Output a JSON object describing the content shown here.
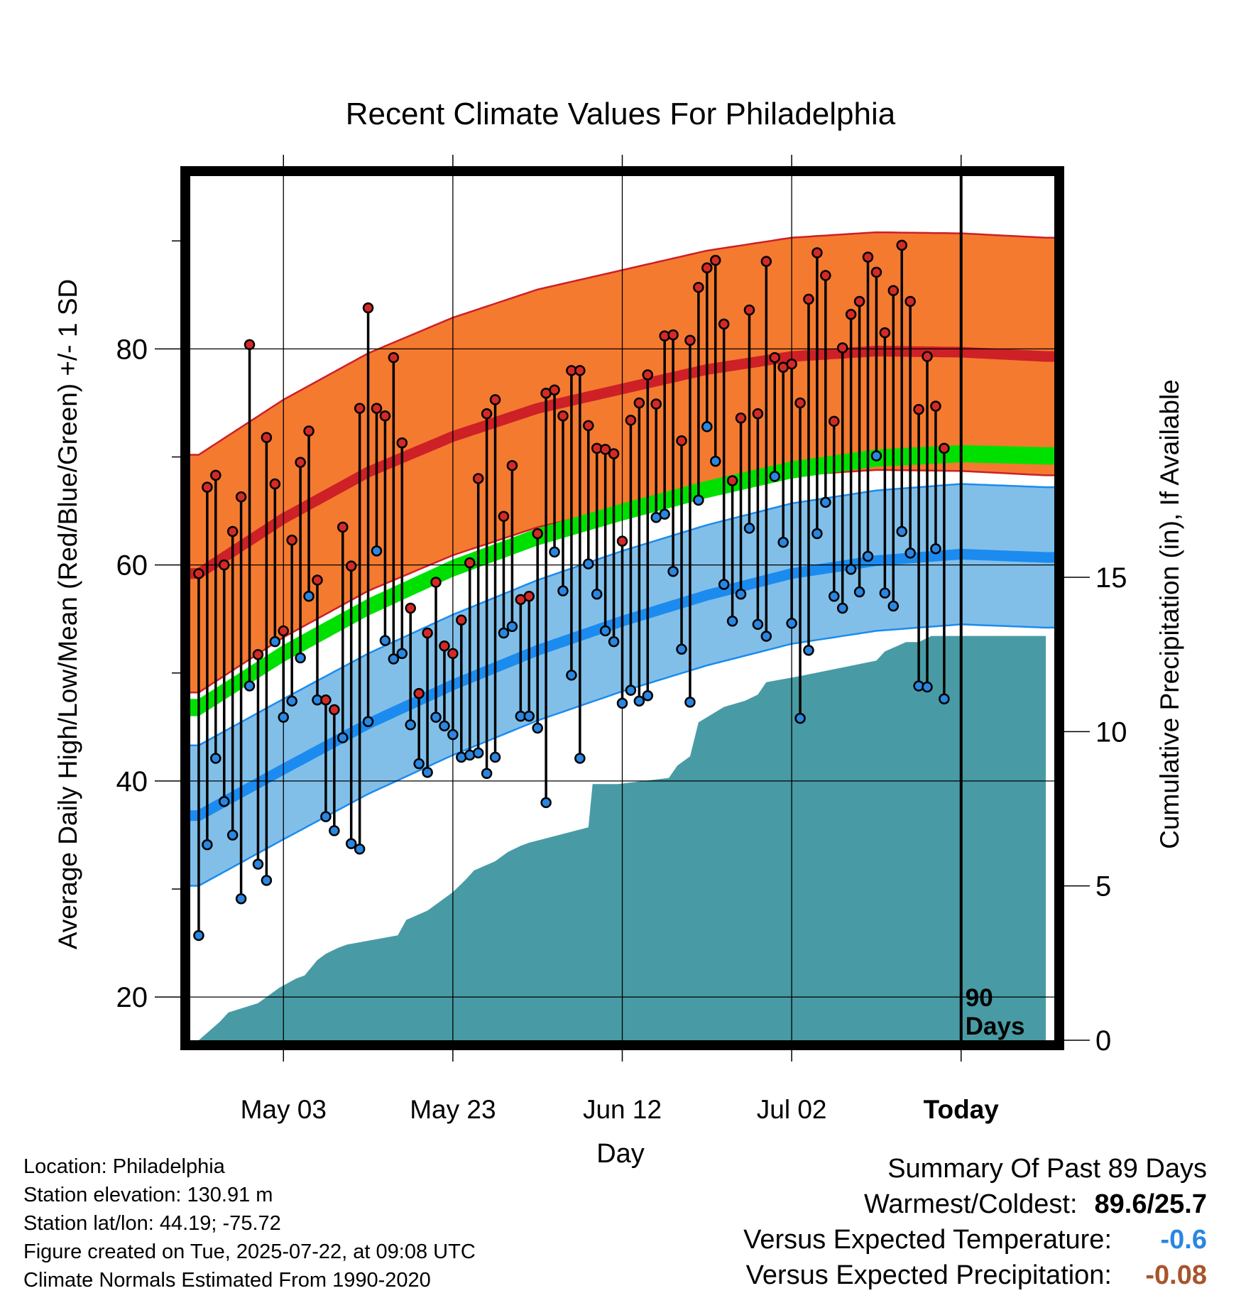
{
  "chart_data": {
    "type": "line",
    "title": "Recent Climate Values For Philadelphia",
    "xlabel": "Day",
    "ylabel": "Average Daily High/Low/Mean (Red/Blue/Green) +/- 1 SD",
    "y2label": "Cumulative Precipitation (in), If Available",
    "ylim": [
      16,
      96
    ],
    "y2lim": [
      0,
      28
    ],
    "yticks": [
      "20",
      "40",
      "60",
      "80"
    ],
    "y2ticks": [
      "0",
      "5",
      "10",
      "15"
    ],
    "xticks": [
      {
        "day": 10,
        "label": "May 03"
      },
      {
        "day": 30,
        "label": "May 23"
      },
      {
        "day": 50,
        "label": "Jun 12"
      },
      {
        "day": 70,
        "label": "Jul 02"
      },
      {
        "day": 90,
        "label": "Today"
      }
    ],
    "today_marker": {
      "day": 90,
      "label_line1": "90",
      "label_line2": "Days"
    },
    "grid": true,
    "colors": {
      "high_band": "#f47a30",
      "high_mean": "#cd2027",
      "low_band": "#82bfe8",
      "low_mean": "#1b8bef",
      "mean_line": "#00e000",
      "precip": "#489ba4",
      "high_dot": "#d42a26",
      "low_dot": "#2a86e0"
    },
    "normals": {
      "x": [
        0,
        10,
        20,
        30,
        40,
        50,
        60,
        70,
        80,
        90,
        100
      ],
      "high_mean": [
        59.2,
        64.3,
        68.6,
        71.9,
        74.5,
        76.3,
        78.1,
        79.3,
        79.8,
        79.7,
        79.3
      ],
      "high_sd": 11.0,
      "mean": [
        46.8,
        51.8,
        56.1,
        59.7,
        62.6,
        64.9,
        67.0,
        68.8,
        69.9,
        70.3,
        70.1
      ],
      "mean_halfwidth": 0.8,
      "low_mean": [
        36.8,
        41.1,
        45.3,
        48.9,
        52.1,
        54.8,
        57.2,
        59.2,
        60.4,
        61.0,
        60.7
      ],
      "low_sd": 6.5
    },
    "series": [
      {
        "name": "high",
        "values": [
          59.2,
          67.2,
          68.3,
          60.0,
          63.1,
          66.3,
          80.4,
          51.7,
          71.8,
          67.5,
          53.9,
          62.3,
          69.5,
          72.4,
          58.6,
          47.5,
          46.6,
          63.5,
          59.9,
          74.5,
          83.8,
          74.5,
          73.8,
          79.2,
          71.3,
          56.0,
          48.1,
          53.7,
          58.4,
          52.5,
          51.8,
          54.9,
          60.2,
          68.0,
          74.0,
          75.3,
          64.5,
          69.2,
          56.8,
          57.1,
          62.9,
          75.9,
          76.2,
          73.8,
          78.0,
          78.0,
          72.9,
          70.8,
          70.7,
          70.3,
          62.2,
          73.4,
          75.0,
          77.6,
          74.9,
          81.2,
          81.3,
          71.5,
          80.8,
          85.7,
          87.5,
          88.2,
          82.3,
          67.8,
          73.6,
          83.6,
          74.0,
          88.1,
          79.2,
          78.3,
          78.6,
          75.0,
          84.6,
          88.9,
          86.8,
          73.3,
          80.1,
          83.2,
          84.4,
          88.5,
          87.1,
          81.5,
          85.4,
          89.6,
          84.4,
          74.4,
          79.3,
          74.7,
          70.8
        ]
      },
      {
        "name": "low",
        "values": [
          25.7,
          34.1,
          42.1,
          38.1,
          35.0,
          29.1,
          48.8,
          32.3,
          30.8,
          52.9,
          45.9,
          47.4,
          51.4,
          57.1,
          47.5,
          36.7,
          35.4,
          44.0,
          34.2,
          33.7,
          45.5,
          61.3,
          53.0,
          51.3,
          51.8,
          45.2,
          41.6,
          40.8,
          45.9,
          45.1,
          44.3,
          42.2,
          42.4,
          42.6,
          40.7,
          42.2,
          53.7,
          54.3,
          46.0,
          46.0,
          44.9,
          38.0,
          61.2,
          57.6,
          49.8,
          42.1,
          60.1,
          57.3,
          53.9,
          52.9,
          47.2,
          48.4,
          47.4,
          47.9,
          64.4,
          64.7,
          59.4,
          52.2,
          47.3,
          66.0,
          72.8,
          69.6,
          58.2,
          54.8,
          57.3,
          63.4,
          54.5,
          53.4,
          68.2,
          62.1,
          54.6,
          45.8,
          52.1,
          62.9,
          65.8,
          57.1,
          56.0,
          59.6,
          57.5,
          60.8,
          70.1,
          57.4,
          56.2,
          63.1,
          61.1,
          48.8,
          48.7,
          61.5,
          47.6
        ]
      },
      {
        "name": "precip",
        "x": [
          0,
          2.5,
          3.5,
          7.0,
          8.0,
          9.5,
          11.5,
          12.5,
          14.0,
          15.0,
          16.5,
          17.5,
          23.5,
          24.5,
          27.0,
          30.0,
          31.5,
          32.5,
          35.0,
          36.5,
          38.0,
          39.0,
          46.0,
          46.5,
          49.5,
          55.5,
          56.5,
          58.0,
          59.0,
          62.0,
          64.5,
          66.0,
          67.0,
          71.0,
          80.0,
          81.0,
          83.5,
          85.0,
          86.5,
          100.0
        ],
        "values": [
          0.0,
          0.6,
          0.9,
          1.2,
          1.4,
          1.7,
          2.0,
          2.1,
          2.6,
          2.8,
          3.0,
          3.1,
          3.4,
          3.9,
          4.2,
          4.8,
          5.2,
          5.5,
          5.8,
          6.1,
          6.3,
          6.4,
          6.9,
          8.3,
          8.3,
          8.5,
          8.9,
          9.2,
          10.3,
          10.8,
          11.0,
          11.2,
          11.6,
          11.8,
          12.3,
          12.6,
          12.9,
          12.9,
          13.1,
          13.1
        ]
      }
    ]
  },
  "footer": {
    "location": "Location: Philadelphia",
    "elevation": "Station elevation: 130.91 m",
    "latlon": "Station lat/lon: 44.19; -75.72",
    "created": "Figure created on Tue, 2025-07-22, at 09:08 UTC",
    "normals": "Climate Normals Estimated From 1990-2020"
  },
  "summary": {
    "title": "Summary Of Past 89 Days",
    "warm_cold_label": "Warmest/Coldest:",
    "warm_cold_value": "89.6/25.7",
    "temp_label": "Versus Expected Temperature:",
    "temp_value": "-0.6",
    "temp_color": "#2a86e0",
    "precip_label": "Versus Expected Precipitation:",
    "precip_value": "-0.08",
    "precip_color": "#a8542c"
  }
}
